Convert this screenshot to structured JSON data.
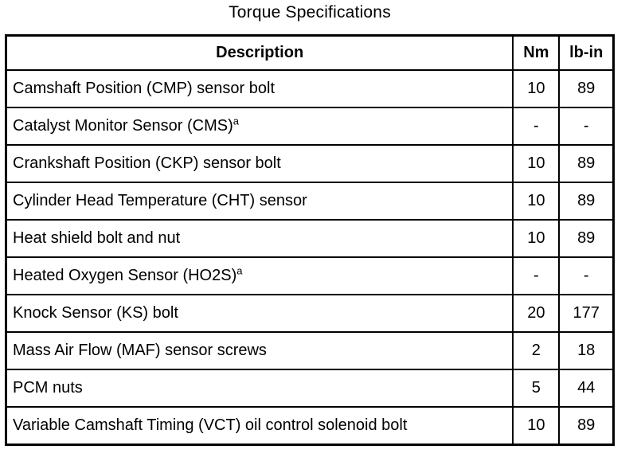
{
  "title": "Torque Specifications",
  "table": {
    "headers": [
      "Description",
      "Nm",
      "lb-in"
    ],
    "footnote_marker": "a",
    "rows": [
      {
        "description": "Camshaft Position (CMP) sensor bolt",
        "sup": "",
        "nm": "10",
        "lbin": "89"
      },
      {
        "description": "Catalyst Monitor Sensor (CMS)",
        "sup": "a",
        "nm": "-",
        "lbin": "-"
      },
      {
        "description": "Crankshaft Position (CKP) sensor bolt",
        "sup": "",
        "nm": "10",
        "lbin": "89"
      },
      {
        "description": "Cylinder Head Temperature (CHT) sensor",
        "sup": "",
        "nm": "10",
        "lbin": "89"
      },
      {
        "description": "Heat shield bolt and nut",
        "sup": "",
        "nm": "10",
        "lbin": "89"
      },
      {
        "description": "Heated Oxygen Sensor (HO2S)",
        "sup": "a",
        "nm": "-",
        "lbin": "-"
      },
      {
        "description": "Knock Sensor (KS) bolt",
        "sup": "",
        "nm": "20",
        "lbin": "177"
      },
      {
        "description": "Mass Air Flow (MAF) sensor screws",
        "sup": "",
        "nm": "2",
        "lbin": "18"
      },
      {
        "description": "PCM nuts",
        "sup": "",
        "nm": "5",
        "lbin": "44"
      },
      {
        "description": "Variable Camshaft Timing (VCT) oil control solenoid bolt",
        "sup": "",
        "nm": "10",
        "lbin": "89"
      }
    ]
  },
  "colors": {
    "background": "#ffffff",
    "text": "#000000",
    "border": "#000000"
  }
}
